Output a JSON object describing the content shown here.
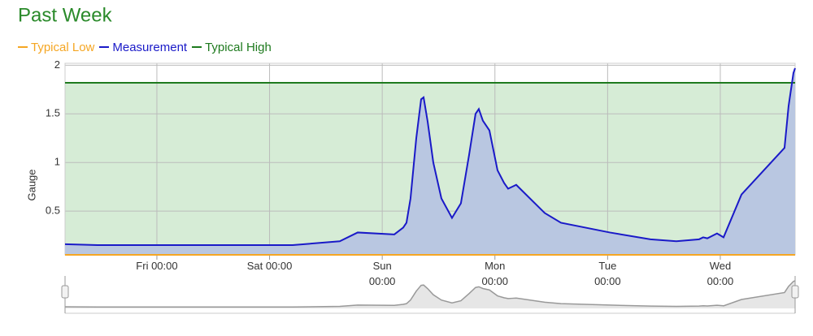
{
  "chart_data": {
    "type": "line",
    "title": "Past Week",
    "ylabel": "Gauge",
    "xlim": [
      0.185,
      6.664
    ],
    "ylim": [
      0.05,
      2.02
    ],
    "xticks": [
      {
        "value": 1,
        "label": "Fri 00:00"
      },
      {
        "value": 2,
        "label": "Sat 00:00"
      },
      {
        "value": 3,
        "label": "Sun 00:00"
      },
      {
        "value": 4,
        "label": "Mon 00:00"
      },
      {
        "value": 5,
        "label": "Tue 00:00"
      },
      {
        "value": 6,
        "label": "Wed 00:00"
      }
    ],
    "yticks": [
      0.5,
      1,
      1.5,
      2
    ],
    "grid": true,
    "band_color": "#d6ecd6",
    "area_color": "#b9c7e1",
    "series": [
      {
        "name": "Typical Low",
        "color": "#f5a623",
        "value": 0.05
      },
      {
        "name": "Measurement",
        "color": "#1a1ac8",
        "x": [
          0.185,
          0.473,
          1.772,
          2.205,
          2.623,
          2.782,
          3.107,
          3.186,
          3.215,
          3.251,
          3.302,
          3.345,
          3.367,
          3.403,
          3.453,
          3.525,
          3.619,
          3.698,
          3.771,
          3.828,
          3.857,
          3.893,
          3.951,
          4.023,
          4.081,
          4.117,
          4.153,
          4.189,
          4.442,
          4.586,
          5.019,
          5.38,
          5.61,
          5.812,
          5.848,
          5.885,
          5.971,
          6.029,
          6.188,
          6.57,
          6.606,
          6.649,
          6.664
        ],
        "values": [
          0.16,
          0.15,
          0.15,
          0.15,
          0.19,
          0.28,
          0.26,
          0.33,
          0.38,
          0.63,
          1.25,
          1.65,
          1.67,
          1.42,
          1.0,
          0.63,
          0.43,
          0.58,
          1.08,
          1.5,
          1.55,
          1.43,
          1.33,
          0.92,
          0.79,
          0.73,
          0.75,
          0.77,
          0.48,
          0.38,
          0.28,
          0.21,
          0.19,
          0.21,
          0.23,
          0.22,
          0.27,
          0.23,
          0.67,
          1.15,
          1.58,
          1.92,
          1.97
        ]
      },
      {
        "name": "Typical High",
        "color": "#1e7a1e",
        "value": 1.82
      }
    ]
  }
}
